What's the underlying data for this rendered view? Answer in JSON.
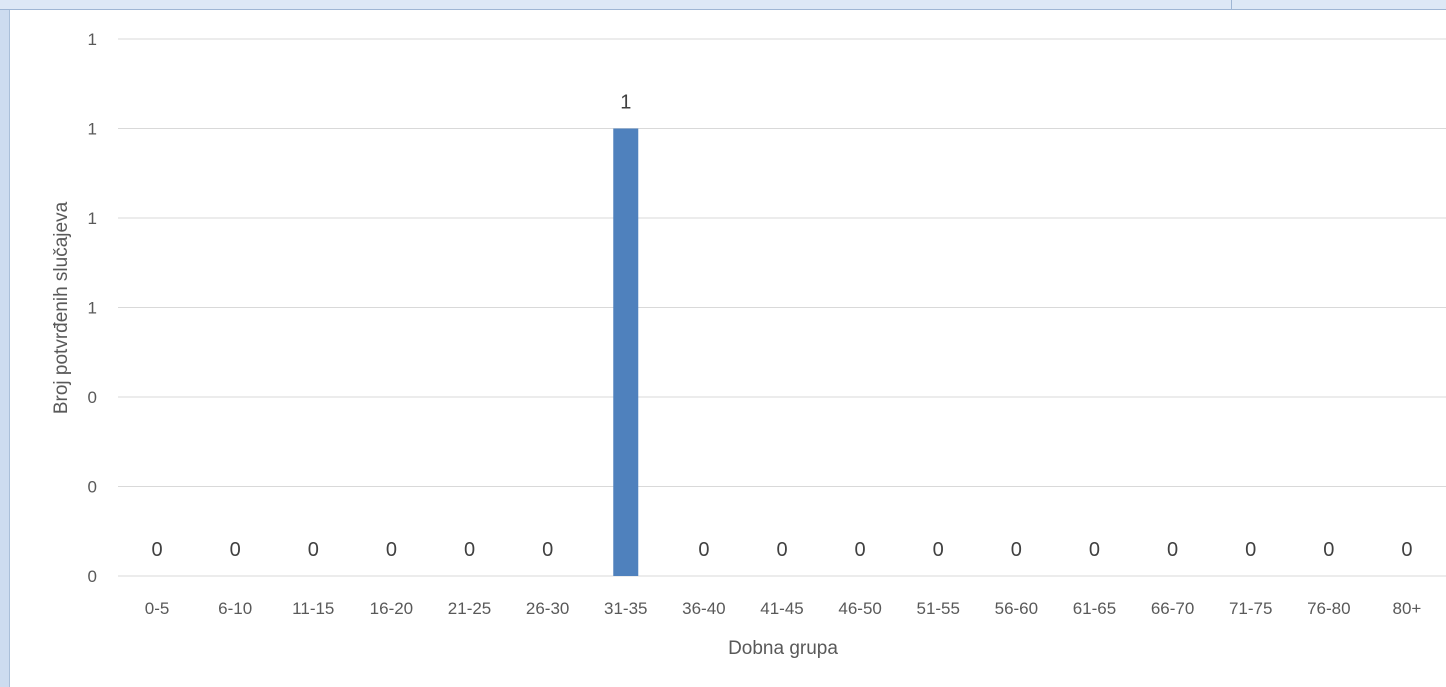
{
  "chart_data": {
    "type": "bar",
    "title": "",
    "xlabel": "Dobna grupa",
    "ylabel": "Broj potvrđenih slučajeva",
    "categories": [
      "0-5",
      "6-10",
      "11-15",
      "16-20",
      "21-25",
      "26-30",
      "31-35",
      "36-40",
      "41-45",
      "46-50",
      "51-55",
      "56-60",
      "61-65",
      "66-70",
      "71-75",
      "76-80",
      "80+"
    ],
    "values": [
      0,
      0,
      0,
      0,
      0,
      0,
      1,
      0,
      0,
      0,
      0,
      0,
      0,
      0,
      0,
      0,
      0
    ],
    "data_labels": [
      "0",
      "0",
      "0",
      "0",
      "0",
      "0",
      "1",
      "0",
      "0",
      "0",
      "0",
      "0",
      "0",
      "0",
      "0",
      "0",
      "0"
    ],
    "ylim": [
      0,
      1.2
    ],
    "ytick_values": [
      0,
      0.2,
      0.4,
      0.6,
      0.8,
      1.0,
      1.2
    ],
    "ytick_labels": [
      "0",
      "0",
      "0",
      "1",
      "1",
      "1",
      "1"
    ],
    "grid": true,
    "legend": "none",
    "bar_color": "#4f81bd",
    "grid_color": "#d9d9d9"
  }
}
